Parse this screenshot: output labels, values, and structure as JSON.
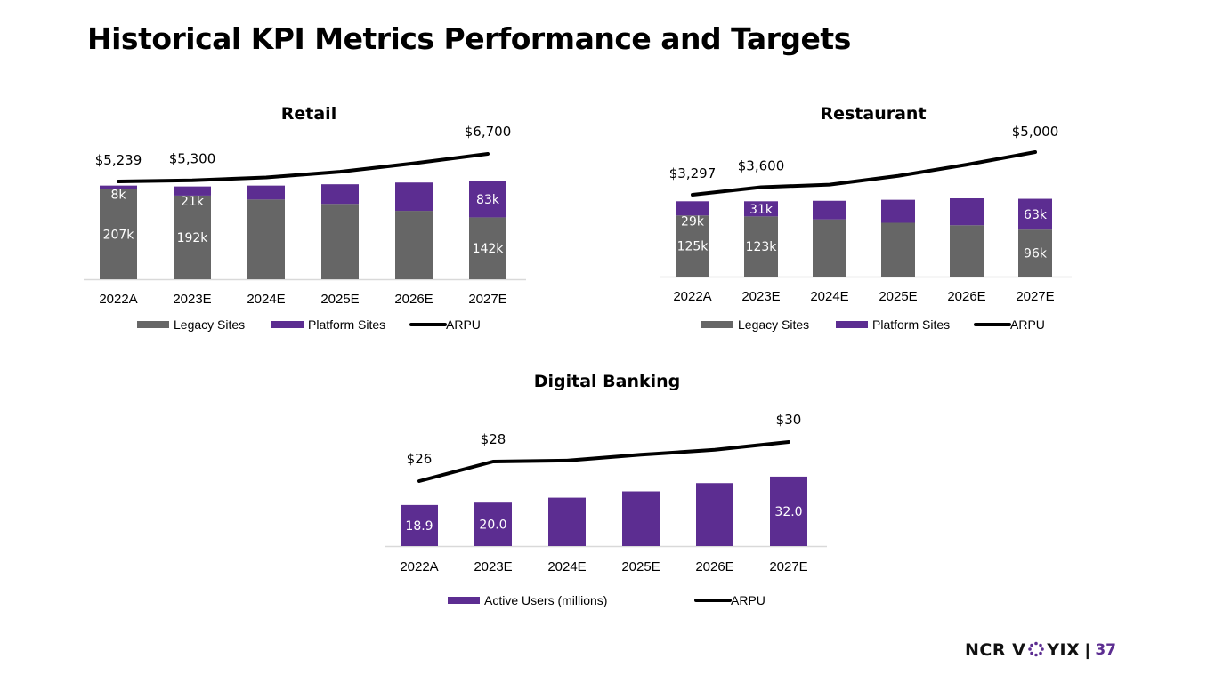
{
  "page": {
    "title": "Historical KPI Metrics Performance and Targets",
    "logo_text_left": "NCR V",
    "logo_text_right": "YIX",
    "separator": "|",
    "page_number": "37"
  },
  "colors": {
    "legacy": "#666666",
    "platform": "#5c2d91",
    "arpu": "#000000",
    "axis": "#d9d9d9"
  },
  "chart_data": [
    {
      "type": "bar",
      "stacked": true,
      "title": "Retail",
      "categories": [
        "2022A",
        "2023E",
        "2024E",
        "2025E",
        "2026E",
        "2027E"
      ],
      "series": [
        {
          "name": "Legacy Sites",
          "kind": "bar",
          "unit": "k sites",
          "values": [
            207,
            192,
            183,
            173,
            157,
            142
          ],
          "labels": [
            "207k",
            "192k",
            null,
            null,
            null,
            "142k"
          ]
        },
        {
          "name": "Platform Sites",
          "kind": "bar",
          "unit": "k sites",
          "values": [
            8,
            21,
            32,
            45,
            65,
            83
          ],
          "labels": [
            "8k",
            "21k",
            null,
            null,
            null,
            "83k"
          ]
        },
        {
          "name": "ARPU",
          "kind": "line",
          "unit": "$",
          "values": [
            5239,
            5300,
            5450,
            5750,
            6200,
            6700
          ],
          "labels": [
            "$5,239",
            "$5,300",
            null,
            null,
            null,
            "$6,700"
          ]
        }
      ],
      "legend": [
        "Legacy Sites",
        "Platform Sites",
        "ARPU"
      ],
      "legend_position": "bottom",
      "xlabel": "",
      "ylabel": "",
      "grid": false
    },
    {
      "type": "bar",
      "stacked": true,
      "title": "Restaurant",
      "categories": [
        "2022A",
        "2023E",
        "2024E",
        "2025E",
        "2026E",
        "2027E"
      ],
      "series": [
        {
          "name": "Legacy Sites",
          "kind": "bar",
          "unit": "k sites",
          "values": [
            125,
            123,
            117,
            110,
            105,
            96
          ],
          "labels": [
            "125k",
            "123k",
            null,
            null,
            null,
            "96k"
          ]
        },
        {
          "name": "Platform Sites",
          "kind": "bar",
          "unit": "k sites",
          "values": [
            29,
            31,
            38,
            47,
            55,
            63
          ],
          "labels": [
            "29k",
            "31k",
            null,
            null,
            null,
            "63k"
          ]
        },
        {
          "name": "ARPU",
          "kind": "line",
          "unit": "$",
          "values": [
            3297,
            3600,
            3700,
            4050,
            4500,
            5000
          ],
          "labels": [
            "$3,297",
            "$3,600",
            null,
            null,
            null,
            "$5,000"
          ]
        }
      ],
      "legend": [
        "Legacy Sites",
        "Platform Sites",
        "ARPU"
      ],
      "legend_position": "bottom",
      "xlabel": "",
      "ylabel": "",
      "grid": false
    },
    {
      "type": "bar",
      "stacked": false,
      "title": "Digital Banking",
      "categories": [
        "2022A",
        "2023E",
        "2024E",
        "2025E",
        "2026E",
        "2027E"
      ],
      "series": [
        {
          "name": "Active Users (millions)",
          "kind": "bar",
          "unit": "millions",
          "values": [
            18.9,
            20.0,
            22.3,
            25.2,
            29.0,
            32.0
          ],
          "labels": [
            "18.9",
            "20.0",
            null,
            null,
            null,
            "32.0"
          ]
        },
        {
          "name": "ARPU",
          "kind": "line",
          "unit": "$",
          "values": [
            26,
            28,
            28.1,
            28.7,
            29.2,
            30
          ],
          "labels": [
            "$26",
            "$28",
            null,
            null,
            null,
            "$30"
          ]
        }
      ],
      "legend": [
        "Active Users (millions)",
        "ARPU"
      ],
      "legend_position": "bottom",
      "xlabel": "",
      "ylabel": "",
      "grid": false
    }
  ]
}
